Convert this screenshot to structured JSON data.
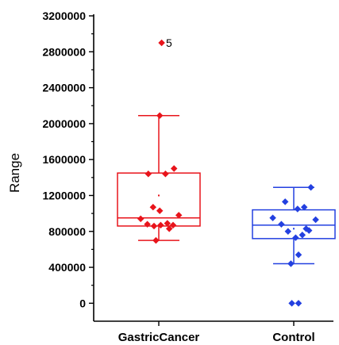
{
  "chart_data": {
    "type": "box",
    "ylabel": "Range",
    "xlabel": "",
    "ylim": [
      -200000,
      3200000
    ],
    "yticks": [
      0,
      400000,
      800000,
      1200000,
      1600000,
      2000000,
      2400000,
      2800000,
      3200000
    ],
    "ytick_labels": [
      "0",
      "400000",
      "800000",
      "1200000",
      "1600000",
      "2000000",
      "2400000",
      "2800000",
      "3200000"
    ],
    "grid": false,
    "categories": [
      "GastricCancer",
      "Control"
    ],
    "series": [
      {
        "category": "GastricCancer",
        "color": "#e8141b",
        "box": {
          "q1": 860000,
          "median": 950000,
          "q3": 1450000,
          "whisker_low": 700000,
          "whisker_high": 2090000,
          "mean": 1200000
        },
        "points": [
          {
            "x": -0.19,
            "y": 940000
          },
          {
            "x": -0.12,
            "y": 880000
          },
          {
            "x": -0.05,
            "y": 860000
          },
          {
            "x": 0.02,
            "y": 870000
          },
          {
            "x": 0.09,
            "y": 890000
          },
          {
            "x": 0.15,
            "y": 870000
          },
          {
            "x": 0.21,
            "y": 980000
          },
          {
            "x": -0.06,
            "y": 1070000
          },
          {
            "x": 0.01,
            "y": 1030000
          },
          {
            "x": 0.11,
            "y": 830000
          },
          {
            "x": -0.03,
            "y": 700000
          },
          {
            "x": -0.11,
            "y": 1440000
          },
          {
            "x": 0.07,
            "y": 1440000
          },
          {
            "x": 0.16,
            "y": 1500000
          },
          {
            "x": 0.01,
            "y": 2090000
          },
          {
            "x": 0.03,
            "y": 2900000
          }
        ],
        "outlier_annotation": {
          "text": "5",
          "y": 2900000
        }
      },
      {
        "category": "Control",
        "color": "#2340e0",
        "box": {
          "q1": 720000,
          "median": 870000,
          "q3": 1040000,
          "whisker_low": 440000,
          "whisker_high": 1290000,
          "mean": 830000
        },
        "points": [
          {
            "x": -0.22,
            "y": 950000
          },
          {
            "x": -0.13,
            "y": 880000
          },
          {
            "x": -0.06,
            "y": 800000
          },
          {
            "x": 0.02,
            "y": 730000
          },
          {
            "x": 0.09,
            "y": 760000
          },
          {
            "x": 0.16,
            "y": 810000
          },
          {
            "x": 0.23,
            "y": 930000
          },
          {
            "x": -0.09,
            "y": 1130000
          },
          {
            "x": 0.04,
            "y": 1050000
          },
          {
            "x": 0.11,
            "y": 1070000
          },
          {
            "x": 0.18,
            "y": 1290000
          },
          {
            "x": -0.03,
            "y": 440000
          },
          {
            "x": 0.05,
            "y": 540000
          },
          {
            "x": -0.02,
            "y": 0
          },
          {
            "x": 0.05,
            "y": 0
          },
          {
            "x": 0.13,
            "y": 830000
          }
        ]
      }
    ]
  }
}
